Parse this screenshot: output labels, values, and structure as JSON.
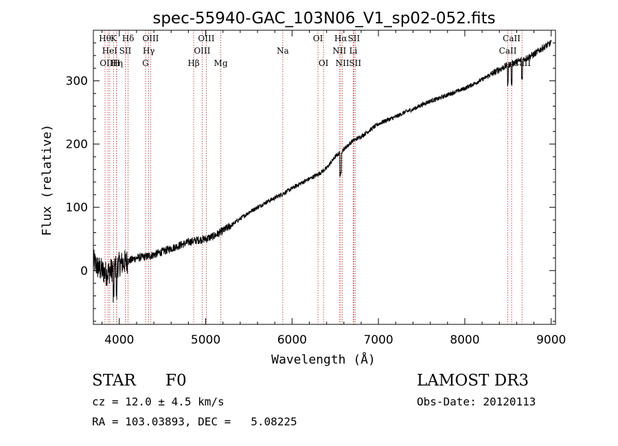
{
  "chart_data": {
    "type": "line",
    "title": "spec-55940-GAC_103N06_V1_sp02-052.fits",
    "xlabel": "Wavelength (Å)",
    "ylabel": "Flux (relative)",
    "xlim": [
      3700,
      9050
    ],
    "ylim": [
      -85,
      380
    ],
    "xticks": [
      4000,
      5000,
      6000,
      7000,
      8000,
      9000
    ],
    "yticks": [
      0,
      100,
      200,
      300
    ],
    "grid": false,
    "line_color": "#000000",
    "marker_color": "#b22222",
    "series": [
      {
        "name": "spectrum",
        "x": [
          3700,
          3750,
          3800,
          3850,
          3900,
          3950,
          4000,
          4100,
          4200,
          4300,
          4400,
          4500,
          4600,
          4700,
          4800,
          4900,
          5000,
          5100,
          5200,
          5300,
          5400,
          5500,
          5600,
          5700,
          5800,
          5900,
          6000,
          6100,
          6200,
          6300,
          6400,
          6500,
          6600,
          6700,
          6800,
          6900,
          7000,
          7100,
          7200,
          7300,
          7400,
          7500,
          7600,
          7700,
          7800,
          7900,
          8000,
          8100,
          8200,
          8300,
          8400,
          8500,
          8600,
          8700,
          8800,
          8900,
          9000
        ],
        "y": [
          15,
          5,
          0,
          -5,
          0,
          5,
          10,
          15,
          20,
          22,
          25,
          30,
          35,
          40,
          45,
          48,
          50,
          55,
          63,
          72,
          82,
          92,
          100,
          108,
          115,
          122,
          130,
          138,
          145,
          152,
          162,
          180,
          192,
          205,
          212,
          222,
          232,
          238,
          243,
          250,
          255,
          262,
          268,
          272,
          278,
          283,
          288,
          295,
          302,
          310,
          318,
          325,
          330,
          335,
          342,
          352,
          360
        ]
      }
    ],
    "line_markers": [
      {
        "wavelength": 3835,
        "label": "Hθ",
        "row": 0
      },
      {
        "wavelength": 3869,
        "label": "OIII",
        "row": 2
      },
      {
        "wavelength": 3889,
        "label": "HeI",
        "row": 1
      },
      {
        "wavelength": 3933,
        "label": "K",
        "row": 0
      },
      {
        "wavelength": 3968,
        "label": "H",
        "row": 2
      },
      {
        "wavelength": 3970,
        "label": "Hη",
        "row": 2
      },
      {
        "wavelength": 4069,
        "label": "SII",
        "row": 1
      },
      {
        "wavelength": 4102,
        "label": "Hδ",
        "row": 0
      },
      {
        "wavelength": 4304,
        "label": "G",
        "row": 2
      },
      {
        "wavelength": 4341,
        "label": "Hγ",
        "row": 1
      },
      {
        "wavelength": 4363,
        "label": "OIII",
        "row": 0
      },
      {
        "wavelength": 4861,
        "label": "Hβ",
        "row": 2
      },
      {
        "wavelength": 4959,
        "label": "OIII",
        "row": 1
      },
      {
        "wavelength": 5007,
        "label": "OIII",
        "row": 0
      },
      {
        "wavelength": 5175,
        "label": "Mg",
        "row": 2
      },
      {
        "wavelength": 5893,
        "label": "Na",
        "row": 1
      },
      {
        "wavelength": 6300,
        "label": "OI",
        "row": 0
      },
      {
        "wavelength": 6364,
        "label": "OI",
        "row": 2
      },
      {
        "wavelength": 6548,
        "label": "NII",
        "row": 1
      },
      {
        "wavelength": 6563,
        "label": "Hα",
        "row": 0
      },
      {
        "wavelength": 6583,
        "label": "NII",
        "row": 2
      },
      {
        "wavelength": 6708,
        "label": "Li",
        "row": 1
      },
      {
        "wavelength": 6716,
        "label": "SII",
        "row": 0
      },
      {
        "wavelength": 6731,
        "label": "SII",
        "row": 2
      },
      {
        "wavelength": 8498,
        "label": "CaII",
        "row": 1
      },
      {
        "wavelength": 8542,
        "label": "CaII",
        "row": 0
      },
      {
        "wavelength": 8662,
        "label": "CaII",
        "row": 2
      }
    ]
  },
  "info": {
    "object_class": "STAR",
    "subclass": "F0",
    "survey": "LAMOST DR3",
    "redshift": "cz = 12.0 ± 4.5 km/s",
    "obs_date": "Obs-Date: 20120113",
    "coords": "RA = 103.03893, DEC =   5.08225"
  }
}
